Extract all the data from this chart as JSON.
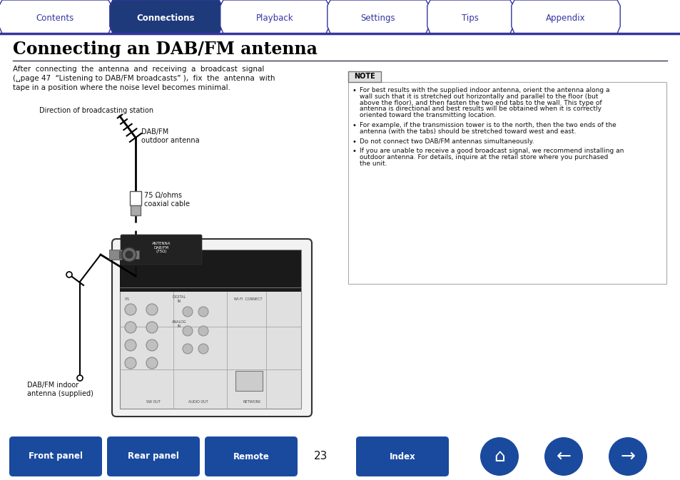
{
  "title": "Connecting an DAB/FM antenna",
  "tab_labels": [
    "Contents",
    "Connections",
    "Playback",
    "Settings",
    "Tips",
    "Appendix"
  ],
  "active_tab": 1,
  "tab_bg_active": "#1e3a7a",
  "tab_bg_inactive": "#ffffff",
  "tab_text_active": "#ffffff",
  "tab_text_inactive": "#3535a0",
  "tab_border": "#3535a0",
  "nav_button_color": "#1a4a9e",
  "page_number": "23",
  "bg_color": "#ffffff",
  "note_bullets": [
    "For best results with the supplied indoor antenna, orient the antenna along a wall such that it is stretched out horizontally and parallel to the floor (but above the floor), and then fasten the two end tabs to the wall. This type of antenna is directional and best results will be obtained when it is correctly oriented toward the transmitting location.",
    "For example, if the transmission tower is to the north, then the two ends of the antenna (with the tabs) should be stretched toward west and east.",
    "Do not connect two DAB/FM antennas simultaneously.",
    "If you are unable to receive a good broadcast signal, we recommend installing an outdoor antenna. For details, inquire at the retail store where you purchased the unit."
  ],
  "direction_label": "Direction of broadcasting station",
  "outdoor_label": "DAB/FM\noutdoor antenna",
  "cable_label": "75 Ω/ohms\ncoaxial cable",
  "indoor_label": "DAB/FM indoor\nantenna (supplied)",
  "body_line1": "After  connecting  the  antenna  and  receiving  a  broadcast  signal",
  "body_line2": "(␣page 47  “Listening to DAB/FM broadcasts” ),  fix  the  antenna  with",
  "body_line3": "tape in a position where the noise level becomes minimal.",
  "tab_x": [
    0,
    155,
    310,
    460,
    600,
    718,
    868,
    954
  ]
}
